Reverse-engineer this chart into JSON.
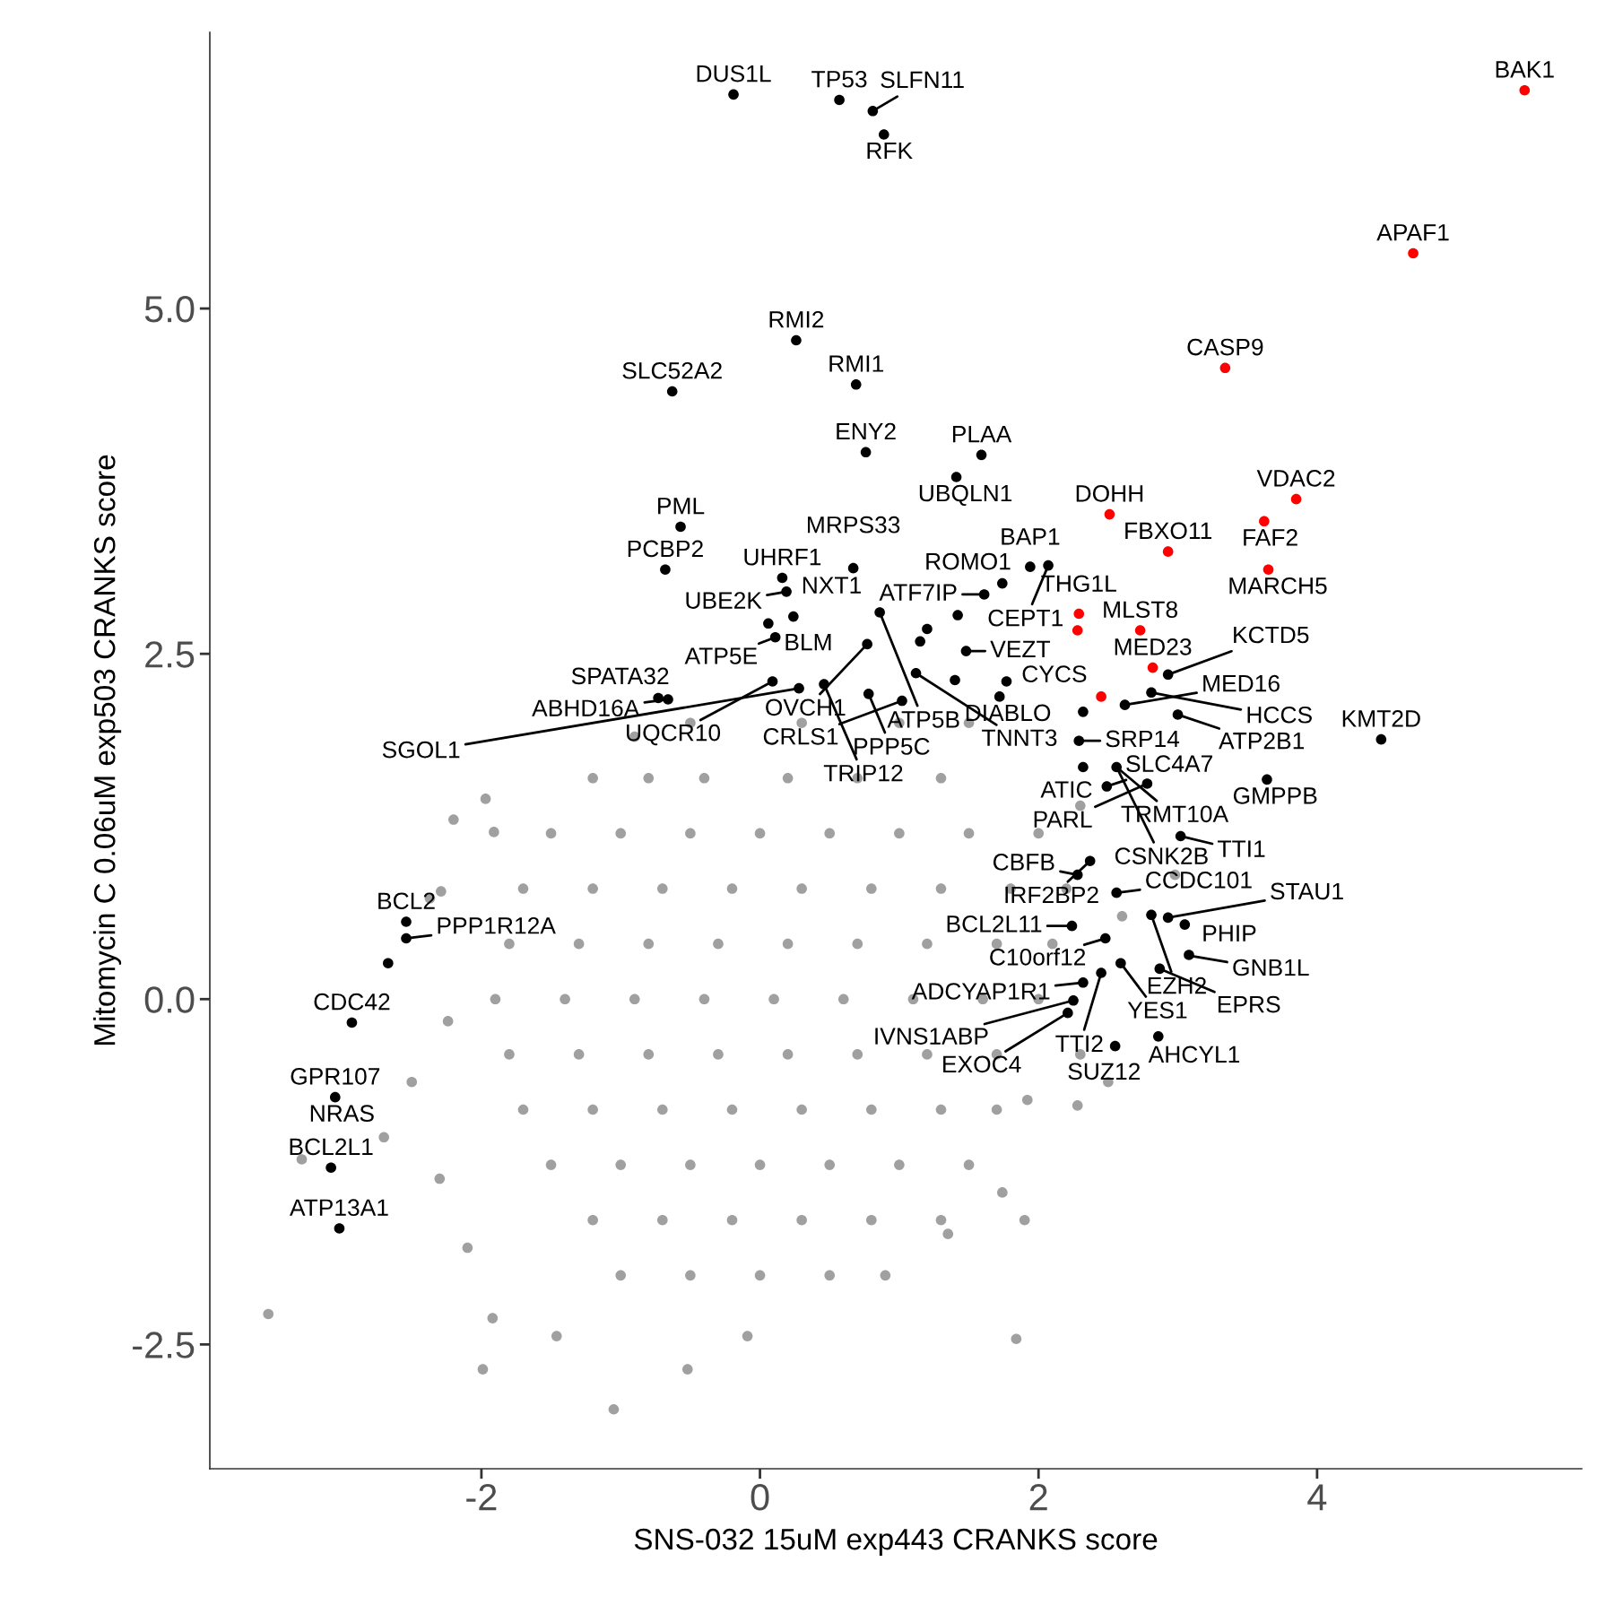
{
  "chart_data": {
    "type": "scatter",
    "xlabel": "SNS-032 15uM exp443 CRANKS score",
    "ylabel": "Mitomycin C 0.06uM exp503 CRANKS score",
    "xlim": [
      -3.95,
      5.9
    ],
    "ylim": [
      -3.4,
      7.0
    ],
    "xticks": [
      -2,
      0,
      2,
      4
    ],
    "yticks": [
      {
        "value": -2.5,
        "label": "-2.5"
      },
      {
        "value": 0,
        "label": "0.0"
      },
      {
        "value": 2.5,
        "label": "2.5"
      },
      {
        "value": 5,
        "label": "5.0"
      }
    ],
    "grid": false,
    "legend": false,
    "marker": "circle",
    "series": [
      {
        "color": "#a0a0a0",
        "x": [
          -3.53,
          -1.99,
          -1.05,
          -0.52,
          -0.09,
          1.84,
          -3.29,
          -1.97,
          -1.91,
          -2.29,
          -2.37,
          -2.24,
          -1.46,
          -1.92,
          2.98,
          2.3,
          2.28,
          1.92,
          1.74,
          1.35,
          -1.2,
          -0.8,
          -0.4,
          0.2,
          0.7,
          1.3,
          -1.5,
          -1.0,
          -0.5,
          0.0,
          0.5,
          1.0,
          1.5,
          2.0,
          -1.7,
          -1.2,
          -0.7,
          -0.2,
          0.3,
          0.8,
          1.3,
          1.8,
          2.2,
          -1.8,
          -1.3,
          -0.8,
          -0.3,
          0.2,
          0.7,
          1.2,
          1.7,
          2.1,
          -1.9,
          -1.4,
          -0.9,
          -0.4,
          0.1,
          0.6,
          1.1,
          1.6,
          2.0,
          -1.8,
          -1.3,
          -0.8,
          -0.3,
          0.2,
          0.7,
          1.2,
          1.7,
          -1.7,
          -1.2,
          -0.7,
          -0.2,
          0.3,
          0.8,
          1.3,
          1.7,
          -1.5,
          -1.0,
          -0.5,
          0.0,
          0.5,
          1.0,
          1.5,
          -1.2,
          -0.7,
          -0.2,
          0.3,
          0.8,
          1.3,
          -1.0,
          -0.5,
          0.0,
          0.5,
          0.9,
          -0.5,
          0.3,
          1.0,
          1.5,
          -0.9,
          -2.5,
          -2.3,
          -2.1,
          -2.7,
          2.5,
          2.6,
          1.9,
          -2.2,
          2.3
        ],
        "values": [
          -2.28,
          -2.68,
          -2.97,
          -2.68,
          -2.44,
          -2.46,
          -1.16,
          1.45,
          1.21,
          0.78,
          0.73,
          -0.16,
          -2.44,
          -2.31,
          0.9,
          -0.4,
          -0.77,
          -0.73,
          -1.4,
          -1.7,
          1.6,
          1.6,
          1.6,
          1.6,
          1.6,
          1.6,
          1.2,
          1.2,
          1.2,
          1.2,
          1.2,
          1.2,
          1.2,
          1.2,
          0.8,
          0.8,
          0.8,
          0.8,
          0.8,
          0.8,
          0.8,
          0.8,
          0.8,
          0.4,
          0.4,
          0.4,
          0.4,
          0.4,
          0.4,
          0.4,
          0.4,
          0.4,
          0.0,
          0.0,
          0.0,
          0.0,
          0.0,
          0.0,
          0.0,
          0.0,
          0.0,
          -0.4,
          -0.4,
          -0.4,
          -0.4,
          -0.4,
          -0.4,
          -0.4,
          -0.4,
          -0.8,
          -0.8,
          -0.8,
          -0.8,
          -0.8,
          -0.8,
          -0.8,
          -0.8,
          -1.2,
          -1.2,
          -1.2,
          -1.2,
          -1.2,
          -1.2,
          -1.2,
          -1.6,
          -1.6,
          -1.6,
          -1.6,
          -1.6,
          -1.6,
          -2.0,
          -2.0,
          -2.0,
          -2.0,
          -2.0,
          2.0,
          2.0,
          2.0,
          2.0,
          1.9,
          -0.6,
          -1.3,
          -1.8,
          -1.0,
          -0.6,
          0.6,
          -1.6,
          1.3,
          1.4
        ]
      },
      {
        "color": "#000000",
        "x": [
          -0.19,
          0.57,
          0.81,
          0.89,
          0.26,
          -0.63,
          0.69,
          0.76,
          1.59,
          1.41,
          1.94,
          1.74,
          2.07,
          1.61,
          0.16,
          0.19,
          0.67,
          -0.57,
          -0.68,
          0.06,
          0.11,
          0.24,
          0.86,
          0.77,
          1.48,
          1.72,
          1.02,
          0.78,
          0.28,
          0.09,
          -0.73,
          -0.66,
          0.46,
          1.12,
          2.29,
          2.32,
          2.56,
          2.32,
          2.62,
          2.81,
          2.93,
          3.0,
          4.46,
          3.64,
          2.78,
          3.02,
          2.37,
          2.28,
          2.56,
          2.81,
          2.93,
          3.05,
          3.08,
          2.48,
          2.24,
          2.59,
          2.87,
          2.32,
          2.45,
          2.25,
          2.21,
          2.86,
          2.55,
          -2.54,
          -2.54,
          -2.67,
          -2.93,
          -3.05,
          -3.08,
          -3.02,
          1.15,
          1.2,
          1.4,
          1.77,
          1.42,
          2.49
        ],
        "values": [
          6.55,
          6.51,
          6.43,
          6.26,
          4.77,
          4.4,
          4.45,
          3.96,
          3.94,
          3.78,
          3.13,
          3.01,
          3.14,
          2.93,
          3.05,
          2.95,
          3.12,
          3.42,
          3.11,
          2.72,
          2.62,
          2.77,
          2.8,
          2.57,
          2.52,
          2.19,
          2.16,
          2.21,
          2.25,
          2.3,
          2.18,
          2.17,
          2.28,
          2.36,
          1.87,
          1.68,
          1.68,
          2.08,
          2.13,
          2.22,
          2.35,
          2.06,
          1.88,
          1.59,
          1.56,
          1.18,
          1.0,
          0.9,
          0.77,
          0.61,
          0.59,
          0.54,
          0.32,
          0.44,
          0.53,
          0.26,
          0.22,
          0.12,
          0.19,
          -0.01,
          -0.1,
          -0.27,
          -0.34,
          0.56,
          0.44,
          0.26,
          -0.17,
          -0.71,
          -1.22,
          -1.66,
          2.59,
          2.68,
          2.31,
          2.3,
          2.78,
          1.54
        ]
      },
      {
        "color": "#ff0000",
        "x": [
          5.49,
          4.69,
          3.34,
          3.85,
          3.62,
          3.65,
          2.51,
          2.93,
          2.73,
          2.29,
          2.28,
          2.82,
          2.45
        ],
        "values": [
          6.58,
          5.4,
          4.57,
          3.62,
          3.46,
          3.11,
          3.51,
          3.24,
          2.67,
          2.79,
          2.67,
          2.4,
          2.19
        ]
      }
    ],
    "annotations": [
      {
        "text": "BAK1",
        "x": 5.49,
        "y": 6.58
      },
      {
        "text": "APAF1",
        "x": 4.69,
        "y": 5.4
      },
      {
        "text": "CASP9",
        "x": 3.34,
        "y": 4.57
      },
      {
        "text": "VDAC2",
        "x": 3.85,
        "y": 3.62
      },
      {
        "text": "FAF2",
        "x": 3.62,
        "y": 3.46
      },
      {
        "text": "MARCH5",
        "x": 3.65,
        "y": 3.11
      },
      {
        "text": "DOHH",
        "x": 2.51,
        "y": 3.51
      },
      {
        "text": "FBXO11",
        "x": 2.93,
        "y": 3.24
      },
      {
        "text": "MLST8",
        "x": 2.73,
        "y": 2.67
      },
      {
        "text": "THG1L",
        "x": 2.29,
        "y": 2.79
      },
      {
        "text": "MED23",
        "x": 2.82,
        "y": 2.4
      },
      {
        "text": "DUS1L",
        "x": -0.19,
        "y": 6.55
      },
      {
        "text": "TP53",
        "x": 0.57,
        "y": 6.51
      },
      {
        "text": "SLFN11",
        "x": 0.81,
        "y": 6.43
      },
      {
        "text": "RFK",
        "x": 0.89,
        "y": 6.26
      },
      {
        "text": "RMI2",
        "x": 0.26,
        "y": 4.77
      },
      {
        "text": "SLC52A2",
        "x": -0.63,
        "y": 4.4
      },
      {
        "text": "RMI1",
        "x": 0.69,
        "y": 4.45
      },
      {
        "text": "ENY2",
        "x": 0.76,
        "y": 3.96
      },
      {
        "text": "PLAA",
        "x": 1.59,
        "y": 3.94
      },
      {
        "text": "UBQLN1",
        "x": 1.41,
        "y": 3.78
      },
      {
        "text": "BAP1",
        "x": 1.94,
        "y": 3.13
      },
      {
        "text": "ROMO1",
        "x": 1.74,
        "y": 3.01
      },
      {
        "text": "CEPT1",
        "x": 2.07,
        "y": 3.14
      },
      {
        "text": "ATF7IP",
        "x": 1.61,
        "y": 2.93
      },
      {
        "text": "UHRF1",
        "x": 0.16,
        "y": 3.05
      },
      {
        "text": "UBE2K",
        "x": 0.19,
        "y": 2.95
      },
      {
        "text": "MRPS33",
        "x": 0.67,
        "y": 3.12
      },
      {
        "text": "PML",
        "x": -0.57,
        "y": 3.42
      },
      {
        "text": "PCBP2",
        "x": -0.68,
        "y": 3.11
      },
      {
        "text": "BLM",
        "x": 0.06,
        "y": 2.72
      },
      {
        "text": "ATP5E",
        "x": 0.11,
        "y": 2.62
      },
      {
        "text": "NXT1",
        "x": 0.24,
        "y": 2.77
      },
      {
        "text": "ATP5B",
        "x": 0.86,
        "y": 2.8
      },
      {
        "text": "OVCH1",
        "x": 0.77,
        "y": 2.57
      },
      {
        "text": "VEZT",
        "x": 1.48,
        "y": 2.52
      },
      {
        "text": "DIABLO",
        "x": 1.72,
        "y": 2.19
      },
      {
        "text": "CRLS1",
        "x": 1.02,
        "y": 2.16
      },
      {
        "text": "PPP5C",
        "x": 0.78,
        "y": 2.21
      },
      {
        "text": "SGOL1",
        "x": 0.28,
        "y": 2.25
      },
      {
        "text": "UQCR10",
        "x": 0.09,
        "y": 2.3
      },
      {
        "text": "SPATA32",
        "x": -0.73,
        "y": 2.18
      },
      {
        "text": "ABHD16A",
        "x": -0.66,
        "y": 2.17
      },
      {
        "text": "TRIP12",
        "x": 0.46,
        "y": 2.28
      },
      {
        "text": "TNNT3",
        "x": 1.12,
        "y": 2.36
      },
      {
        "text": "SRP14",
        "x": 2.29,
        "y": 1.87
      },
      {
        "text": "ATIC",
        "x": 2.32,
        "y": 1.68
      },
      {
        "text": "TRMT10A",
        "x": 2.56,
        "y": 1.68
      },
      {
        "text": "SLC4A7",
        "x": 2.49,
        "y": 1.54
      },
      {
        "text": "CYCS",
        "x": 2.32,
        "y": 2.08
      },
      {
        "text": "MED16",
        "x": 2.62,
        "y": 2.13
      },
      {
        "text": "HCCS",
        "x": 2.81,
        "y": 2.22
      },
      {
        "text": "KCTD5",
        "x": 2.93,
        "y": 2.35
      },
      {
        "text": "ATP2B1",
        "x": 3.0,
        "y": 2.06
      },
      {
        "text": "KMT2D",
        "x": 4.46,
        "y": 1.88
      },
      {
        "text": "GMPPB",
        "x": 3.64,
        "y": 1.59
      },
      {
        "text": "PARL",
        "x": 2.78,
        "y": 1.56
      },
      {
        "text": "CSNK2B",
        "x": 2.56,
        "y": 1.68
      },
      {
        "text": "TTI1",
        "x": 3.02,
        "y": 1.18
      },
      {
        "text": "IRF2BP2",
        "x": 2.37,
        "y": 1.0
      },
      {
        "text": "CBFB",
        "x": 2.28,
        "y": 0.9
      },
      {
        "text": "CCDC101",
        "x": 2.56,
        "y": 0.77
      },
      {
        "text": "EZH2",
        "x": 2.81,
        "y": 0.61
      },
      {
        "text": "STAU1",
        "x": 2.93,
        "y": 0.59
      },
      {
        "text": "PHIP",
        "x": 3.02,
        "y": 0.54
      },
      {
        "text": "GNB1L",
        "x": 3.05,
        "y": 0.32
      },
      {
        "text": "C10orf12",
        "x": 2.48,
        "y": 0.44
      },
      {
        "text": "BCL2L11",
        "x": 2.24,
        "y": 0.53
      },
      {
        "text": "YES1",
        "x": 2.59,
        "y": 0.26
      },
      {
        "text": "EPRS",
        "x": 2.87,
        "y": 0.22
      },
      {
        "text": "ADCYAP1R1",
        "x": 2.32,
        "y": 0.12
      },
      {
        "text": "TTI2",
        "x": 2.45,
        "y": 0.19
      },
      {
        "text": "IVNS1ABP",
        "x": 2.25,
        "y": -0.01
      },
      {
        "text": "EXOC4",
        "x": 2.21,
        "y": -0.1
      },
      {
        "text": "AHCYL1",
        "x": 2.86,
        "y": -0.27
      },
      {
        "text": "SUZ12",
        "x": 2.55,
        "y": -0.34
      },
      {
        "text": "BCL2",
        "x": -2.54,
        "y": 0.56
      },
      {
        "text": "PPP1R12A",
        "x": -2.54,
        "y": 0.44
      },
      {
        "text": "CDC42",
        "x": -2.93,
        "y": -0.17
      },
      {
        "text": "GPR107",
        "x": -3.05,
        "y": -0.71
      },
      {
        "text": "NRAS",
        "x": -3.05,
        "y": -0.71
      },
      {
        "text": "BCL2L1",
        "x": -3.08,
        "y": -1.22
      },
      {
        "text": "ATP13A1",
        "x": -3.02,
        "y": -1.66
      }
    ]
  }
}
